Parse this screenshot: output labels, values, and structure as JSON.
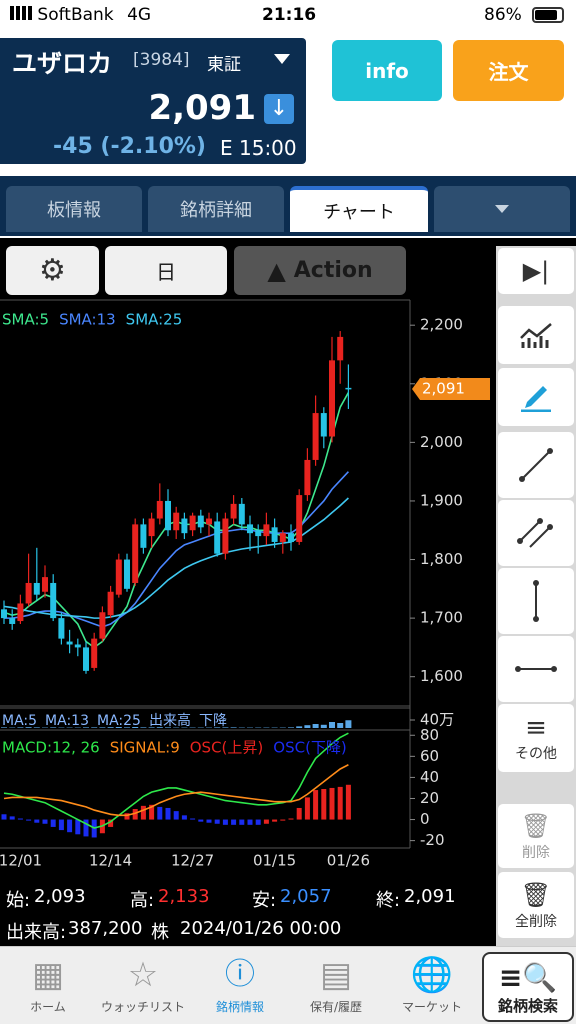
{
  "status_bar": {
    "carrier": "SoftBank",
    "network": "4G",
    "time": "21:16",
    "battery": "86%"
  },
  "header": {
    "name": "ユザロカ",
    "code": "[3984]",
    "market": "東証",
    "price": "2,091",
    "change": "-45 (-2.10%)",
    "time": "E 15:00"
  },
  "buttons": {
    "info": "info",
    "order": "注文"
  },
  "tabs": [
    "板情報",
    "銘柄詳細",
    "チャート"
  ],
  "toolbar": {
    "period": "日",
    "action": "Action"
  },
  "chart_data": [
    {
      "type": "candlestick",
      "open": [
        1715,
        1700,
        1695,
        1725,
        1760,
        1745,
        1760,
        1700,
        1660,
        1655,
        1650,
        1615,
        1665,
        1705,
        1740,
        1800,
        1760,
        1860,
        1840,
        1870,
        1900,
        1850,
        1870,
        1850,
        1875,
        1860,
        1865,
        1810,
        1870,
        1895,
        1860,
        1850,
        1840,
        1855,
        1830,
        1845,
        1830,
        1910,
        1970,
        2050,
        2010,
        2140,
        2093
      ],
      "high": [
        1730,
        1715,
        1740,
        1810,
        1820,
        1790,
        1775,
        1710,
        1680,
        1665,
        1660,
        1675,
        1720,
        1755,
        1810,
        1810,
        1870,
        1870,
        1880,
        1930,
        1920,
        1890,
        1880,
        1880,
        1885,
        1880,
        1880,
        1880,
        1910,
        1905,
        1875,
        1860,
        1880,
        1870,
        1850,
        1860,
        1920,
        1990,
        2080,
        2060,
        2180,
        2190,
        2133
      ],
      "low": [
        1690,
        1680,
        1690,
        1720,
        1730,
        1735,
        1695,
        1655,
        1640,
        1635,
        1605,
        1610,
        1660,
        1700,
        1735,
        1745,
        1755,
        1810,
        1820,
        1860,
        1840,
        1835,
        1835,
        1840,
        1845,
        1840,
        1805,
        1800,
        1860,
        1850,
        1815,
        1810,
        1825,
        1820,
        1810,
        1815,
        1825,
        1900,
        1960,
        1990,
        2000,
        2100,
        2057
      ],
      "close": [
        1700,
        1690,
        1725,
        1760,
        1740,
        1770,
        1700,
        1665,
        1655,
        1650,
        1610,
        1665,
        1710,
        1745,
        1800,
        1750,
        1860,
        1820,
        1870,
        1900,
        1850,
        1880,
        1845,
        1875,
        1855,
        1870,
        1810,
        1870,
        1895,
        1860,
        1845,
        1840,
        1860,
        1830,
        1845,
        1830,
        1910,
        1970,
        2050,
        2010,
        2140,
        2180,
        2091
      ],
      "up_color": "#e8231f",
      "down_color": "#27c3e6",
      "ylim": [
        1550,
        2243
      ],
      "yticks": [
        {
          "value": 2200,
          "label": "2,200"
        },
        {
          "value": 2100,
          "label": "2,100"
        },
        {
          "value": 2000,
          "label": "2,000"
        },
        {
          "value": 1900,
          "label": "1,900"
        },
        {
          "value": 1800,
          "label": "1,800"
        },
        {
          "value": 1700,
          "label": "1,700"
        },
        {
          "value": 1600,
          "label": "1,600"
        }
      ],
      "series": [
        {
          "name": "SMA:5",
          "color": "#3ee88e",
          "values": [
            1710,
            1705,
            1708,
            1720,
            1730,
            1740,
            1735,
            1720,
            1705,
            1690,
            1660,
            1650,
            1660,
            1680,
            1700,
            1720,
            1760,
            1790,
            1820,
            1840,
            1860,
            1865,
            1860,
            1860,
            1865,
            1860,
            1850,
            1850,
            1860,
            1855,
            1855,
            1850,
            1850,
            1845,
            1840,
            1835,
            1850,
            1880,
            1920,
            1960,
            2010,
            2060,
            2085
          ]
        },
        {
          "name": "SMA:13",
          "color": "#4a86ff",
          "values": [
            1700,
            1700,
            1702,
            1705,
            1710,
            1712,
            1712,
            1710,
            1705,
            1700,
            1695,
            1690,
            1685,
            1690,
            1700,
            1710,
            1725,
            1745,
            1765,
            1785,
            1800,
            1815,
            1825,
            1830,
            1835,
            1840,
            1845,
            1848,
            1850,
            1852,
            1850,
            1848,
            1846,
            1845,
            1845,
            1845,
            1855,
            1870,
            1885,
            1900,
            1920,
            1935,
            1950
          ]
        },
        {
          "name": "SMA:25",
          "color": "#3fc8f0",
          "values": [
            1720,
            1718,
            1715,
            1712,
            1710,
            1708,
            1706,
            1705,
            1704,
            1703,
            1702,
            1700,
            1700,
            1702,
            1705,
            1710,
            1718,
            1728,
            1740,
            1752,
            1765,
            1775,
            1785,
            1792,
            1798,
            1803,
            1808,
            1812,
            1815,
            1818,
            1820,
            1822,
            1824,
            1826,
            1828,
            1830,
            1838,
            1848,
            1858,
            1868,
            1880,
            1892,
            1905
          ]
        }
      ],
      "last_price": {
        "value": 2091,
        "label": "2,091"
      }
    },
    {
      "type": "bar",
      "legend": [
        "MA:5",
        "MA:13",
        "MA:25",
        "出来高",
        "下降"
      ],
      "color": "#5aa8e8",
      "values": [
        3,
        2,
        3,
        4,
        3,
        2,
        3,
        2,
        2,
        2,
        3,
        3,
        3,
        4,
        5,
        3,
        5,
        3,
        3,
        4,
        3,
        2,
        2,
        2,
        2,
        2,
        3,
        3,
        3,
        2,
        2,
        2,
        2,
        2,
        2,
        3,
        8,
        14,
        20,
        16,
        30,
        25,
        38.72
      ],
      "ylim": [
        0,
        100
      ],
      "yticks": [
        {
          "value": 40,
          "label": "40万"
        }
      ]
    },
    {
      "type": "macd",
      "categories": [
        null,
        null,
        "12/01",
        null,
        null,
        null,
        null,
        null,
        null,
        null,
        null,
        null,
        null,
        "12/14",
        null,
        null,
        null,
        null,
        null,
        null,
        null,
        null,
        null,
        "12/27",
        null,
        null,
        null,
        null,
        null,
        null,
        null,
        null,
        null,
        "01/15",
        null,
        null,
        null,
        null,
        null,
        null,
        null,
        null,
        "01/26"
      ],
      "ylim": [
        -27,
        85
      ],
      "yticks": [
        80,
        60,
        40,
        20,
        0,
        -20
      ],
      "series": [
        {
          "name": "MACD:12, 26",
          "color": "#2ee84b",
          "kind": "line",
          "values": [
            25,
            24,
            22,
            20,
            18,
            16,
            12,
            8,
            4,
            0,
            -4,
            -8,
            -6,
            -2,
            4,
            10,
            16,
            22,
            26,
            28,
            30,
            30,
            28,
            26,
            24,
            22,
            20,
            18,
            17,
            16,
            15,
            14,
            14,
            15,
            16,
            18,
            30,
            45,
            58,
            65,
            72,
            78,
            82
          ]
        },
        {
          "name": "SIGNAL:9",
          "color": "#ff8c1a",
          "kind": "line",
          "values": [
            20,
            21,
            21,
            21,
            21,
            20,
            19,
            18,
            16,
            14,
            12,
            9,
            7,
            5,
            4,
            4,
            6,
            9,
            12,
            16,
            19,
            22,
            24,
            25,
            26,
            25,
            24,
            23,
            22,
            21,
            20,
            19,
            18,
            17,
            17,
            17,
            19,
            24,
            30,
            36,
            42,
            48,
            52
          ]
        },
        {
          "name": "OSC(上昇)",
          "color": "#e8231f",
          "kind": "bar",
          "values": [
            null,
            null,
            null,
            null,
            null,
            null,
            null,
            null,
            null,
            null,
            null,
            null,
            -13,
            -7,
            0,
            6,
            10,
            13,
            14,
            null,
            null,
            null,
            null,
            null,
            null,
            null,
            null,
            null,
            null,
            null,
            null,
            null,
            -4,
            -2,
            -1,
            1,
            11,
            21,
            28,
            29,
            30,
            31,
            33
          ]
        },
        {
          "name": "OSC(下降)",
          "color": "#1a2cf0",
          "kind": "bar",
          "values": [
            5,
            3,
            1,
            -1,
            -3,
            -4,
            -7,
            -10,
            -12,
            -14,
            -16,
            -17,
            null,
            null,
            null,
            null,
            null,
            null,
            null,
            12,
            11,
            8,
            4,
            1,
            -2,
            -3,
            -4,
            -5,
            -5,
            -5,
            -5,
            -5,
            null,
            null,
            null,
            null,
            null,
            null,
            null,
            null,
            null,
            null,
            null
          ]
        }
      ]
    }
  ],
  "summary": {
    "open_label": "始:",
    "open": "2,093",
    "high_label": "高:",
    "high": "2,133",
    "low_label": "安:",
    "low": "2,057",
    "close_label": "終:",
    "close": "2,091",
    "volume_label": "出来高:",
    "volume": "387,200",
    "volume_unit": "株",
    "datetime": "2024/01/26 00:00"
  },
  "sidebar": {
    "more": "その他",
    "delete": "削除",
    "delete_all": "全削除"
  },
  "nav": [
    "ホーム",
    "ウォッチリスト",
    "銘柄情報",
    "保有/履歴",
    "マーケット",
    "銘柄検索"
  ]
}
